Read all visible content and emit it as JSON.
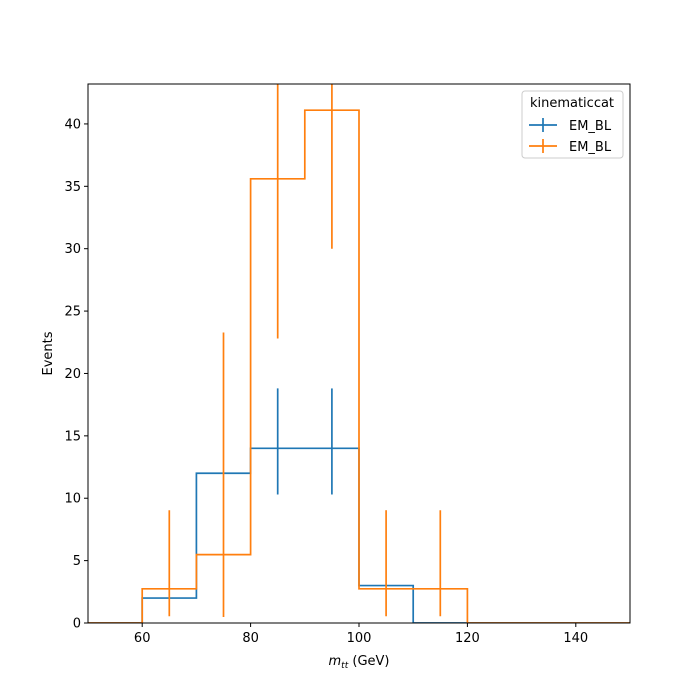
{
  "chart_data": {
    "type": "histogram-step-errorbar",
    "xlabel_var": "m",
    "xlabel_sub": "tt",
    "xlabel_unit": " (GeV)",
    "ylabel": "Events",
    "xlim": [
      50,
      150
    ],
    "ylim": [
      0,
      43.2
    ],
    "xticks": [
      60,
      80,
      100,
      120,
      140
    ],
    "yticks": [
      0,
      5,
      10,
      15,
      20,
      25,
      30,
      35,
      40
    ],
    "legend": {
      "title": "kinematiccat",
      "placement": "top-right"
    },
    "series": [
      {
        "name": "EM_BL",
        "color": "#1f77b4",
        "edges": [
          50,
          60,
          70,
          80,
          90,
          100,
          110,
          120,
          130,
          140,
          150
        ],
        "values": [
          0,
          2,
          12,
          14,
          14,
          3,
          0,
          0,
          0,
          0
        ],
        "err_low": [
          0,
          0,
          0,
          3.7,
          3.7,
          0,
          0,
          0,
          0,
          0
        ],
        "err_high": [
          0,
          0,
          0,
          4.8,
          4.8,
          0,
          0,
          0,
          0,
          0
        ]
      },
      {
        "name": "EM_BL",
        "color": "#ff7f0e",
        "edges": [
          50,
          60,
          70,
          80,
          90,
          100,
          110,
          120,
          130,
          140,
          150
        ],
        "values": [
          0,
          2.74,
          5.48,
          35.6,
          41.1,
          2.74,
          2.74,
          0,
          0,
          0
        ],
        "err_low": [
          0,
          2.2,
          5.0,
          12.8,
          11.1,
          2.2,
          2.2,
          0,
          0,
          0
        ],
        "err_high": [
          0,
          6.3,
          17.8,
          7.6,
          2.1,
          6.3,
          6.3,
          0,
          0,
          0
        ]
      }
    ]
  }
}
